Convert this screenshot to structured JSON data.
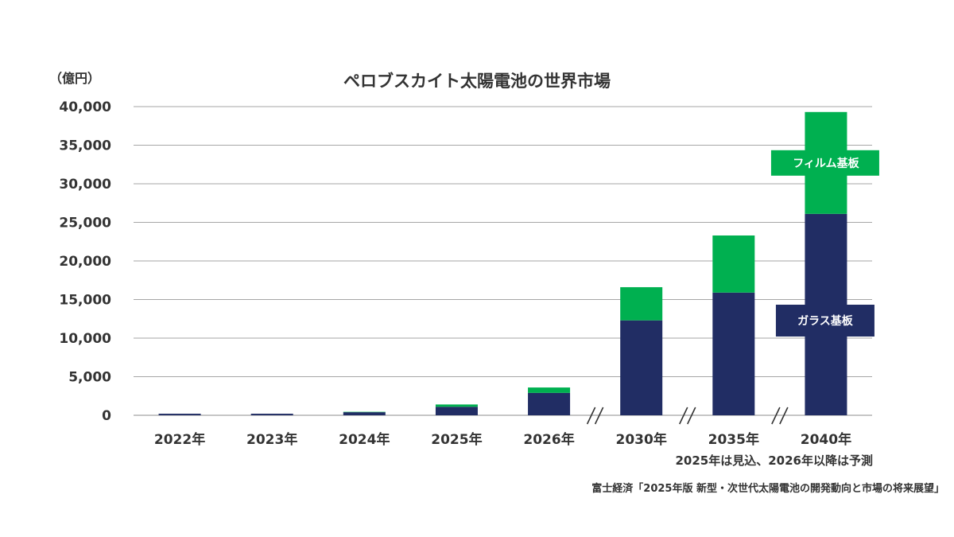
{
  "chart_data": {
    "type": "bar",
    "stacked": true,
    "title": "ペロブスカイト太陽電池の世界市場",
    "ylabel": "（億円）",
    "ylim": [
      0,
      40000
    ],
    "yticks": [
      "0",
      "5,000",
      "10,000",
      "15,000",
      "20,000",
      "25,000",
      "30,000",
      "35,000",
      "40,000"
    ],
    "categories": [
      "2022年",
      "2023年",
      "2024年",
      "2025年",
      "2026年",
      "2030年",
      "2035年",
      "2040年"
    ],
    "axis_breaks": [
      "//",
      "//",
      "//"
    ],
    "series": [
      {
        "name": "ガラス基板",
        "color": "#212d64",
        "values": [
          200,
          200,
          400,
          1100,
          2900,
          12300,
          15900,
          26100
        ]
      },
      {
        "name": "フィルム基板",
        "color": "#00b050",
        "values": [
          0,
          0,
          50,
          300,
          700,
          4300,
          7400,
          13200
        ]
      }
    ],
    "grid": true,
    "note": "2025年は見込、2026年以降は予測",
    "source": "富士経済「2025年版 新型・次世代太陽電池の開発動向と市場の将来展望」"
  }
}
